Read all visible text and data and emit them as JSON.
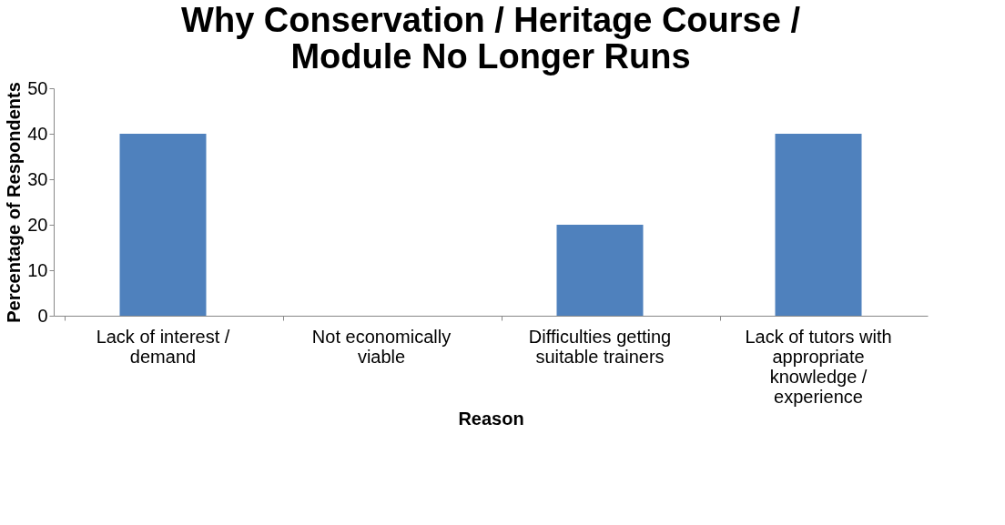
{
  "chart_data": {
    "type": "bar",
    "title": "Why Conservation / Heritage Course / Module No Longer Runs",
    "xlabel": "Reason",
    "ylabel": "Percentage of Respondents",
    "categories": [
      "Lack of interest / demand",
      "Not economically viable",
      "Difficulties getting suitable trainers",
      "Lack of tutors with appropriate knowledge / experience"
    ],
    "values": [
      40,
      0,
      20,
      40
    ],
    "color": "#4f81bd",
    "ylim": [
      0,
      50
    ],
    "yticks": [
      0,
      10,
      20,
      30,
      40,
      50
    ],
    "grid": false
  }
}
